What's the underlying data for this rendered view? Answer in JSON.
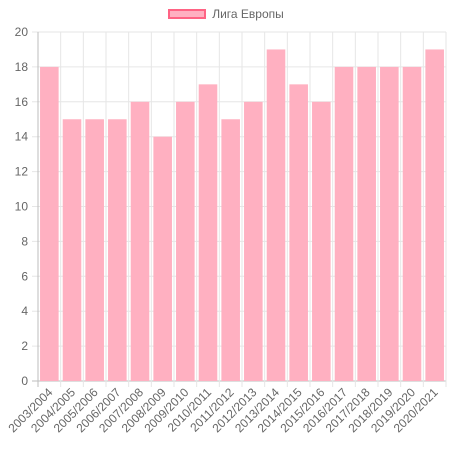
{
  "chart_data": {
    "type": "bar",
    "categories": [
      "2003/2004",
      "2004/2005",
      "2005/2006",
      "2006/2007",
      "2007/2008",
      "2008/2009",
      "2009/2010",
      "2010/2011",
      "2011/2012",
      "2012/2013",
      "2013/2014",
      "2014/2015",
      "2015/2016",
      "2016/2017",
      "2017/2018",
      "2018/2019",
      "2019/2020",
      "2020/2021"
    ],
    "series": [
      {
        "name": "Лига Европы",
        "values": [
          18,
          15,
          15,
          15,
          16,
          14,
          16,
          17,
          15,
          16,
          19,
          17,
          16,
          18,
          18,
          18,
          18,
          19
        ]
      }
    ],
    "ylim": [
      0,
      20
    ],
    "yticks": [
      0,
      2,
      4,
      6,
      8,
      10,
      12,
      14,
      16,
      18,
      20
    ],
    "grid": true,
    "legend": "top-center",
    "colors": {
      "bar_fill": "#ffb0c1",
      "bar_border": "#ff6384",
      "grid": "#e6e6e6",
      "text": "#666666"
    }
  }
}
